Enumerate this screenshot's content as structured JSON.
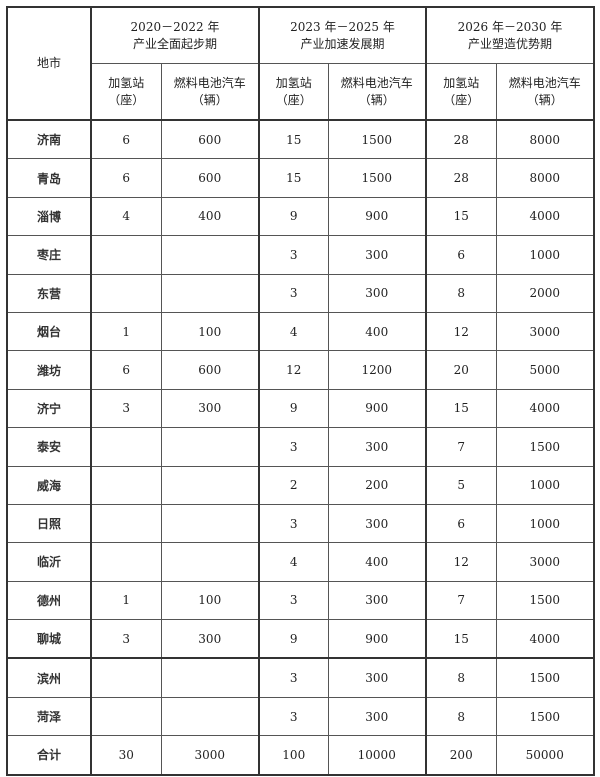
{
  "header": {
    "city_label": "地市",
    "periods": [
      {
        "years": "2020－2022 年",
        "name": "产业全面起步期"
      },
      {
        "years": "2023 年－2025 年",
        "name": "产业加速发展期"
      },
      {
        "years": "2026 年－2030 年",
        "name": "产业塑造优势期"
      }
    ],
    "sub": [
      {
        "label": "加氢站",
        "unit": "（座）"
      },
      {
        "label": "燃料电池汽车",
        "unit": "（辆）"
      }
    ]
  },
  "rows": [
    {
      "city": "济南",
      "v": [
        "6",
        "600",
        "15",
        "1500",
        "28",
        "8000"
      ]
    },
    {
      "city": "青岛",
      "v": [
        "6",
        "600",
        "15",
        "1500",
        "28",
        "8000"
      ]
    },
    {
      "city": "淄博",
      "v": [
        "4",
        "400",
        "9",
        "900",
        "15",
        "4000"
      ]
    },
    {
      "city": "枣庄",
      "v": [
        "",
        "",
        "3",
        "300",
        "6",
        "1000"
      ]
    },
    {
      "city": "东营",
      "v": [
        "",
        "",
        "3",
        "300",
        "8",
        "2000"
      ]
    },
    {
      "city": "烟台",
      "v": [
        "1",
        "100",
        "4",
        "400",
        "12",
        "3000"
      ]
    },
    {
      "city": "潍坊",
      "v": [
        "6",
        "600",
        "12",
        "1200",
        "20",
        "5000"
      ]
    },
    {
      "city": "济宁",
      "v": [
        "3",
        "300",
        "9",
        "900",
        "15",
        "4000"
      ]
    },
    {
      "city": "泰安",
      "v": [
        "",
        "",
        "3",
        "300",
        "7",
        "1500"
      ]
    },
    {
      "city": "威海",
      "v": [
        "",
        "",
        "2",
        "200",
        "5",
        "1000"
      ]
    },
    {
      "city": "日照",
      "v": [
        "",
        "",
        "3",
        "300",
        "6",
        "1000"
      ]
    },
    {
      "city": "临沂",
      "v": [
        "",
        "",
        "4",
        "400",
        "12",
        "3000"
      ]
    },
    {
      "city": "德州",
      "v": [
        "1",
        "100",
        "3",
        "300",
        "7",
        "1500"
      ]
    },
    {
      "city": "聊城",
      "v": [
        "3",
        "300",
        "9",
        "900",
        "15",
        "4000"
      ]
    },
    {
      "city": "滨州",
      "v": [
        "",
        "",
        "3",
        "300",
        "8",
        "1500"
      ]
    },
    {
      "city": "菏泽",
      "v": [
        "",
        "",
        "3",
        "300",
        "8",
        "1500"
      ]
    },
    {
      "city": "合计",
      "v": [
        "30",
        "3000",
        "100",
        "10000",
        "200",
        "50000"
      ]
    }
  ]
}
